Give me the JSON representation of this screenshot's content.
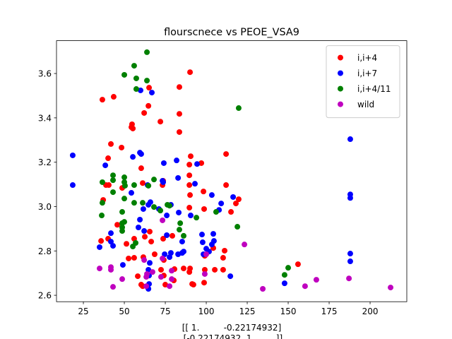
{
  "chart_data": {
    "type": "scatter",
    "title": "flourscnece vs PEOE_VSA9",
    "xlabel": [
      "[[ 1.         -0.22174932]",
      " [-0.22174932  1.        ]]"
    ],
    "xlim": [
      8.6,
      222.4
    ],
    "ylim": [
      2.571,
      3.748
    ],
    "xticks": [
      25,
      50,
      75,
      100,
      125,
      150,
      175,
      200
    ],
    "yticks": [
      2.6,
      2.8,
      {
        "value": 3,
        "label": "3.0"
      },
      3.2,
      3.4,
      3.6
    ],
    "legend": "upper right",
    "series": [
      {
        "name": "i,i+4",
        "color": "#ff0000",
        "x": [
          36.6,
          43.5,
          65.1,
          90.1,
          64.7,
          83.6,
          62.1,
          72,
          54.7,
          54.3,
          55.2,
          83.6,
          83.6,
          41.8,
          40.1,
          48.3,
          60.3,
          90.5,
          97,
          38.8,
          40.5,
          48.7,
          61.2,
          73.7,
          73.3,
          89.7,
          89.7,
          89.7,
          90.1,
          98.3,
          112.1,
          112.1,
          118.1,
          119.8,
          115.1,
          98.7,
          89.7,
          37.1,
          35.8,
          40.1,
          45.7,
          51.3,
          56,
          62.5,
          65.5,
          56,
          52.6,
          61.6,
          68.5,
          66.4,
          73.7,
          79.3,
          74.1,
          72.4,
          74.1,
          80.6,
          75,
          80.2,
          86.2,
          90.1,
          89.7,
          91.4,
          99.1,
          98.7,
          92.2,
          104.3,
          99.1,
          105.2,
          110.3,
          111.2,
          110.3,
          156,
          60.3,
          61.2,
          58.2
        ],
        "values": [
          3.482,
          3.495,
          3.536,
          3.606,
          3.454,
          3.539,
          3.422,
          3.383,
          3.371,
          3.358,
          3.352,
          3.418,
          3.336,
          3.282,
          3.218,
          3.266,
          3.173,
          3.227,
          3.196,
          3.097,
          3.097,
          3.084,
          3.106,
          3.116,
          3.097,
          3.189,
          3.141,
          3.097,
          3.052,
          3.068,
          3.237,
          3.097,
          3.014,
          3.033,
          2.976,
          2.989,
          2.995,
          3.03,
          2.845,
          2.855,
          2.918,
          2.832,
          2.855,
          2.864,
          2.887,
          2.769,
          2.766,
          2.772,
          2.785,
          2.842,
          2.855,
          2.868,
          2.759,
          2.715,
          2.689,
          2.718,
          2.648,
          2.667,
          2.721,
          2.721,
          2.705,
          2.651,
          2.715,
          2.657,
          2.648,
          2.813,
          2.778,
          2.715,
          2.769,
          2.801,
          2.715,
          2.74,
          2.648,
          2.641,
          2.686
        ]
      },
      {
        "name": "i,i+7",
        "color": "#0000ff",
        "x": [
          18.5,
          18.5,
          38.4,
          59.9,
          66.8,
          60.3,
          59.5,
          55.2,
          74.1,
          73.3,
          73.7,
          82.8,
          94.4,
          93.1,
          64.2,
          81.9,
          54.3,
          103.4,
          187.9,
          187.9,
          187.9,
          187.9,
          187.9,
          116.4,
          109.1,
          107.8,
          65.9,
          64.7,
          71.1,
          78.4,
          75.9,
          83.2,
          90.5,
          61.6,
          59.5,
          58.6,
          41.8,
          34.9,
          41.8,
          43.1,
          62.1,
          65.5,
          64.7,
          65.1,
          64.7,
          74.6,
          78.4,
          82.8,
          85.3,
          77.6,
          97.4,
          97.8,
          100,
          103.4,
          104.3,
          104.7,
          101.7,
          98.3,
          114.7,
          86.2,
          49.1,
          147.8,
          75.9,
          85.3,
          65.1
        ],
        "values": [
          3.231,
          3.097,
          3.186,
          3.524,
          3.514,
          3.237,
          3.243,
          3.224,
          3.196,
          3.116,
          3.11,
          3.129,
          3.192,
          3.103,
          3.097,
          3.208,
          3.062,
          3.052,
          3.304,
          3.055,
          3.039,
          2.788,
          2.753,
          3.043,
          3.014,
          2.985,
          3.02,
          3.008,
          2.989,
          3.008,
          2.96,
          2.973,
          2.96,
          2.989,
          2.941,
          2.906,
          2.88,
          2.817,
          2.842,
          2.823,
          2.89,
          2.746,
          2.715,
          2.651,
          2.629,
          2.785,
          2.791,
          2.785,
          2.791,
          2.772,
          2.874,
          2.839,
          2.81,
          2.829,
          2.877,
          2.845,
          2.797,
          2.785,
          2.686,
          2.797,
          2.737,
          2.654,
          2.871,
          2.842,
          2.689
        ]
      },
      {
        "name": "i,i+4/11",
        "color": "#008000",
        "x": [
          63.8,
          56,
          50,
          57.3,
          63.8,
          57.3,
          119.8,
          43.1,
          43.1,
          36.6,
          43.1,
          50,
          50,
          50.4,
          56,
          68.1,
          56,
          61.2,
          50,
          36.6,
          64.7,
          72,
          48.7,
          36.2,
          48.7,
          50,
          48.7,
          48.7,
          56.9,
          55.2,
          84.1,
          83.6,
          86.2,
          94,
          106,
          119,
          150,
          147.8,
          77.6,
          68.1,
          76.3
        ],
        "values": [
          3.696,
          3.635,
          3.594,
          3.578,
          3.568,
          3.53,
          3.444,
          3.141,
          3.119,
          3.11,
          3.065,
          3.132,
          3.11,
          3.094,
          3.097,
          3.122,
          3.017,
          3.017,
          3.036,
          3.017,
          3.094,
          2.982,
          2.976,
          2.96,
          2.925,
          2.931,
          2.906,
          2.89,
          2.836,
          2.82,
          2.925,
          2.896,
          2.868,
          2.95,
          2.976,
          2.909,
          2.724,
          2.692,
          3.004,
          2.998,
          3.008
        ]
      },
      {
        "name": "wild",
        "color": "#bf00bf",
        "x": [
          34.9,
          41.8,
          41.8,
          43.1,
          48.7,
          62.1,
          63.8,
          63.4,
          67.2,
          73.3,
          78.9,
          78.9,
          77.6,
          63.4,
          72.4,
          99.1,
          100,
          123.3,
          134.5,
          160.3,
          167.2,
          187.1,
          212.5,
          73.3
        ],
        "values": [
          2.721,
          2.727,
          2.715,
          2.638,
          2.673,
          2.759,
          2.696,
          2.683,
          2.705,
          2.938,
          2.711,
          2.673,
          2.641,
          2.641,
          2.683,
          2.696,
          2.785,
          2.829,
          2.629,
          2.641,
          2.67,
          2.676,
          2.635,
          2.766
        ]
      }
    ]
  }
}
